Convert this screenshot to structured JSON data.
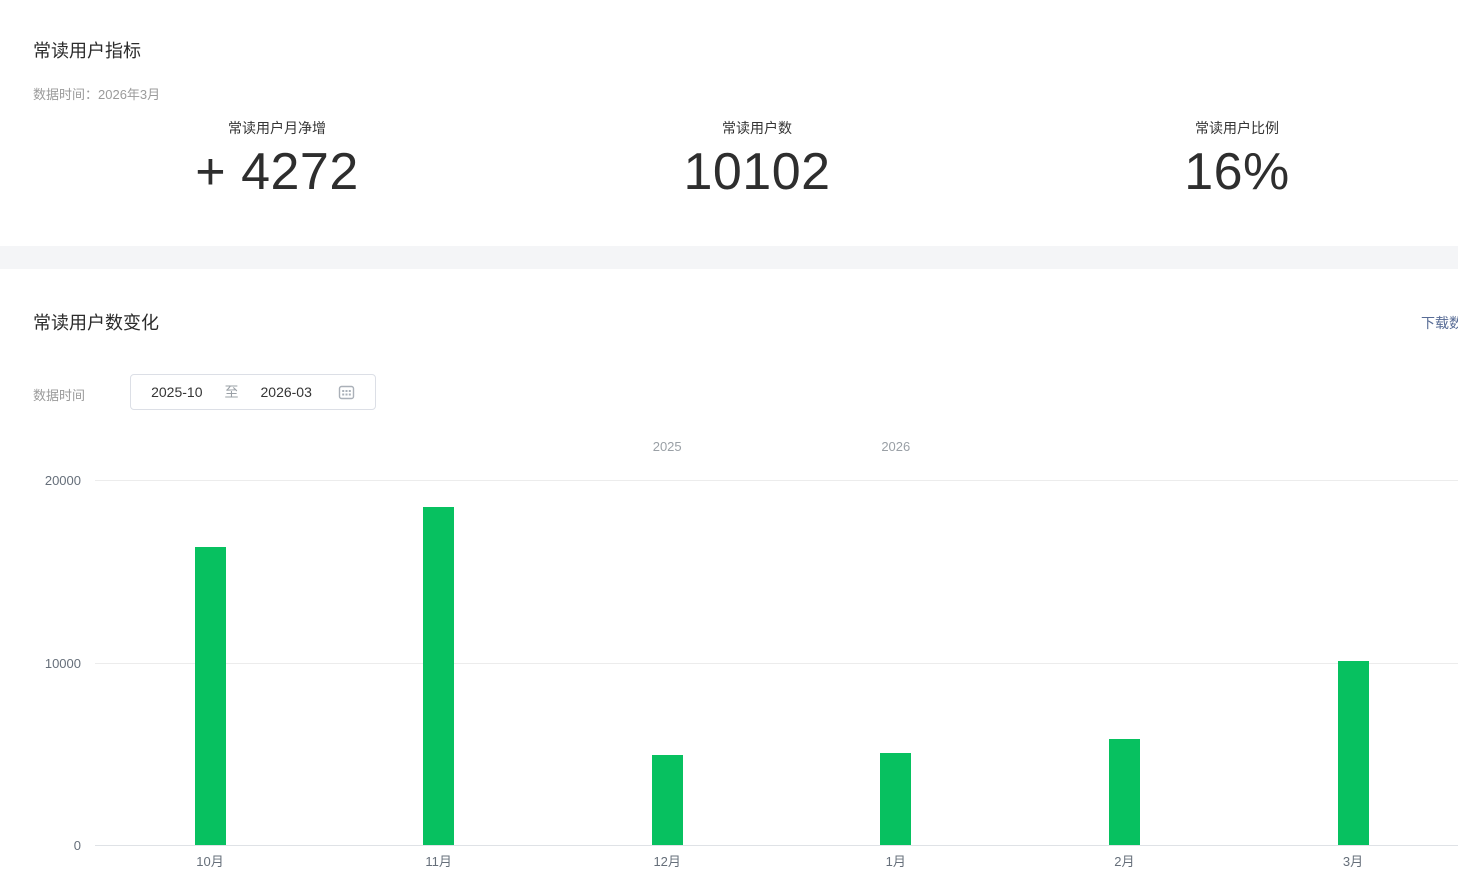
{
  "accent": {
    "green": "#07C160",
    "link_blue": "#576b95"
  },
  "metrics_section": {
    "title": "常读用户指标",
    "data_time_text": "数据时间：2026年3月",
    "metrics": [
      {
        "label": "常读用户月净增",
        "value": "+ 4272"
      },
      {
        "label": "常读用户数",
        "value": "10102"
      },
      {
        "label": "常读用户比例",
        "value": "16%"
      }
    ]
  },
  "chart_section": {
    "title": "常读用户数变化",
    "download_link_label": "下载数据",
    "data_time_label": "数据时间",
    "date_range": {
      "start": "2025-10",
      "separator": "至",
      "end": "2026-03",
      "icon": "calendar-icon"
    }
  },
  "chart_data": {
    "type": "bar",
    "title": "常读用户数变化",
    "categories": [
      "10月",
      "11月",
      "12月",
      "1月",
      "2月",
      "3月"
    ],
    "values": [
      16330,
      18520,
      4930,
      5040,
      5830,
      10102
    ],
    "year_markers": [
      {
        "label": "2025",
        "month_index": 2
      },
      {
        "label": "2026",
        "month_index": 3
      }
    ],
    "xlabel": "",
    "ylabel": "",
    "ylim": [
      0,
      20000
    ],
    "yticks": [
      0,
      10000,
      20000
    ],
    "bar_color": "#07C160",
    "grid": "horizontal",
    "legend": "none"
  }
}
